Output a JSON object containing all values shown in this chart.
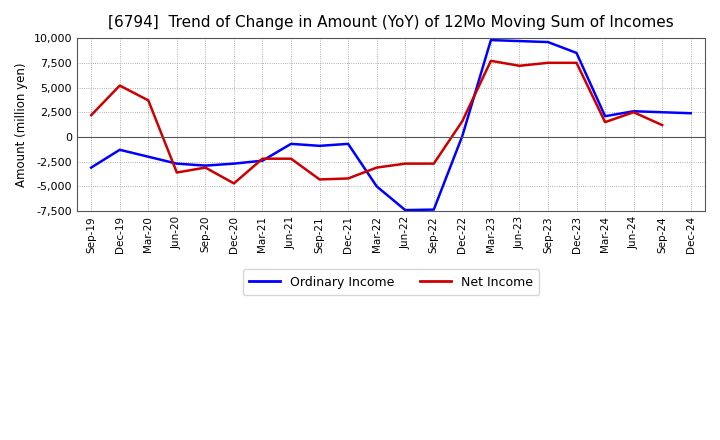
{
  "title": "[6794]  Trend of Change in Amount (YoY) of 12Mo Moving Sum of Incomes",
  "ylabel": "Amount (million yen)",
  "x_labels": [
    "Sep-19",
    "Dec-19",
    "Mar-20",
    "Jun-20",
    "Sep-20",
    "Dec-20",
    "Mar-21",
    "Jun-21",
    "Sep-21",
    "Dec-21",
    "Mar-22",
    "Jun-22",
    "Sep-22",
    "Dec-22",
    "Mar-23",
    "Jun-23",
    "Sep-23",
    "Dec-23",
    "Mar-24",
    "Jun-24",
    "Sep-24",
    "Dec-24"
  ],
  "ordinary_income": [
    -3100,
    -1300,
    -2000,
    -2700,
    -2900,
    -2700,
    -2400,
    -700,
    -900,
    -700,
    -5000,
    -7400,
    -7350,
    100,
    9800,
    9700,
    9600,
    8500,
    2100,
    2600,
    2500,
    2400
  ],
  "net_income": [
    2200,
    5200,
    3700,
    -3600,
    -3100,
    -4700,
    -2200,
    -2200,
    -4300,
    -4200,
    -3100,
    -2700,
    -2700,
    1600,
    7700,
    7200,
    7500,
    7500,
    1500,
    2500,
    1200,
    null
  ],
  "ordinary_color": "#0000ff",
  "net_color": "#cc0000",
  "ylim": [
    -7500,
    10000
  ],
  "yticks": [
    -7500,
    -5000,
    -2500,
    0,
    2500,
    5000,
    7500,
    10000
  ],
  "bg_color": "#ffffff",
  "plot_bg_color": "#ffffff",
  "grid_color": "#999999",
  "line_width": 1.8,
  "title_fontsize": 11,
  "legend_labels": [
    "Ordinary Income",
    "Net Income"
  ]
}
